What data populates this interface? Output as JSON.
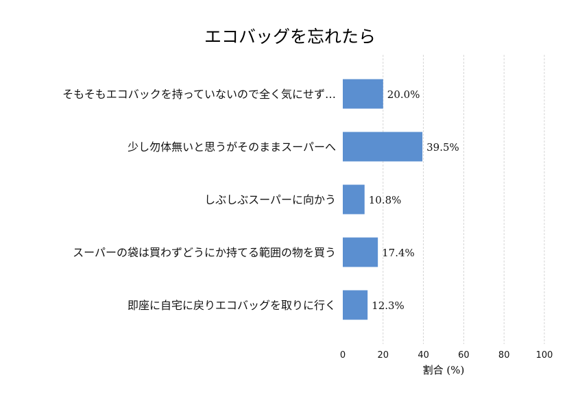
{
  "chart_data": {
    "type": "bar",
    "orientation": "horizontal",
    "title": "エコバッグを忘れたら",
    "categories": [
      "そもそもエコバックを持っていないので全く気にせず…",
      "少し勿体無いと思うがそのままスーパーへ",
      "しぶしぶスーパーに向かう",
      "スーパーの袋は買わずどうにか持てる範囲の物を買う",
      "即座に自宅に戻りエコバッグを取りに行く"
    ],
    "values": [
      20.0,
      39.5,
      10.8,
      17.4,
      12.3
    ],
    "value_labels": [
      "20.0%",
      "39.5%",
      "10.8%",
      "17.4%",
      "12.3%"
    ],
    "xlabel": "割合 (%)",
    "ylabel": "",
    "xlim": [
      0,
      100
    ],
    "xticks": [
      0,
      20,
      40,
      60,
      80,
      100
    ],
    "xtick_labels": [
      "0",
      "20",
      "40",
      "60",
      "80",
      "100"
    ],
    "grid": true,
    "legend": "none"
  },
  "colors": {
    "bar": "#5b8fd0",
    "grid": "#cccccc",
    "text": "#111111"
  }
}
